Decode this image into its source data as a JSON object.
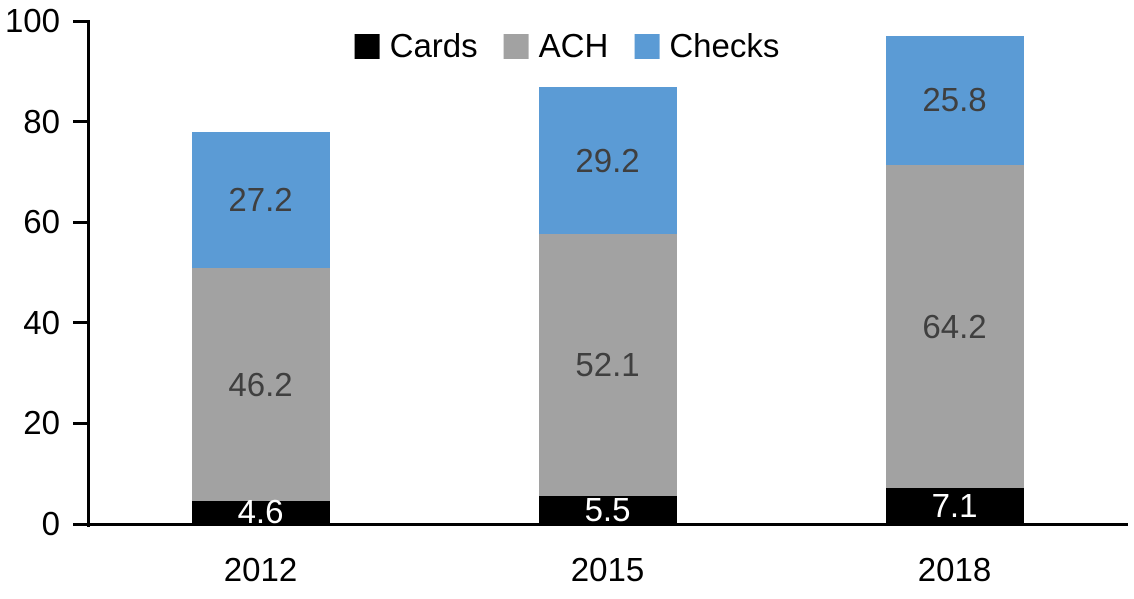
{
  "chart_data": {
    "type": "bar",
    "stacked": true,
    "categories": [
      "2012",
      "2015",
      "2018"
    ],
    "series": [
      {
        "name": "Cards",
        "color": "#000000",
        "label_color": "#ffffff",
        "values": [
          4.6,
          5.5,
          7.1
        ]
      },
      {
        "name": "ACH",
        "color": "#a2a2a2",
        "label_color": "#3f3f3f",
        "values": [
          46.2,
          52.1,
          64.2
        ]
      },
      {
        "name": "Checks",
        "color": "#5b9bd5",
        "label_color": "#3f3f3f",
        "values": [
          27.2,
          29.2,
          25.8
        ]
      }
    ],
    "y_axis": {
      "min": 0,
      "max": 100,
      "tick_step": 20,
      "tick_labels": [
        "0",
        "20",
        "40",
        "60",
        "80",
        "100"
      ]
    },
    "x_axis": {
      "labels": [
        "2012",
        "2015",
        "2018"
      ]
    },
    "legend": {
      "position": "top-center",
      "items": [
        "Cards",
        "ACH",
        "Checks"
      ]
    },
    "grid": "off",
    "axis_color": "#000000",
    "background_color": "#ffffff"
  }
}
